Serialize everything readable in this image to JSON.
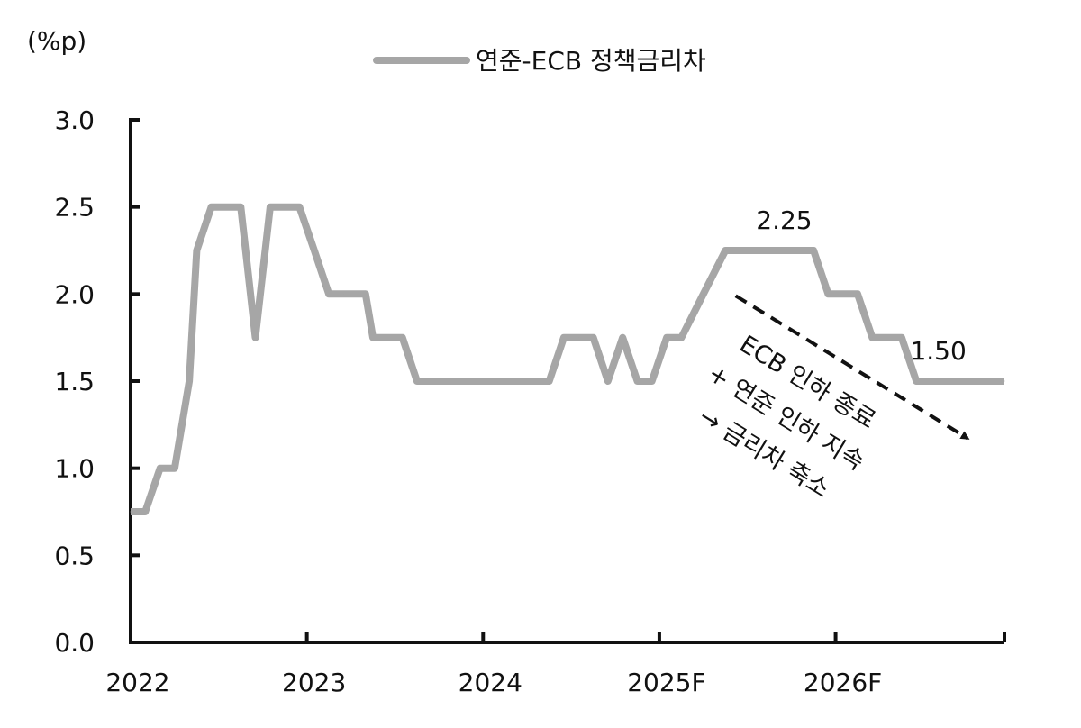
{
  "chart_data": {
    "type": "line",
    "unit_label": "(%p)",
    "legend": {
      "position": "top-center"
    },
    "series": [
      {
        "name": "연준-ECB 정책금리차",
        "color": "#a6a6a6",
        "x": [
          2022.0,
          2022.083,
          2022.167,
          2022.25,
          2022.333,
          2022.375,
          2022.458,
          2022.542,
          2022.625,
          2022.708,
          2022.792,
          2022.875,
          2022.958,
          2023.042,
          2023.125,
          2023.208,
          2023.333,
          2023.375,
          2023.458,
          2023.542,
          2023.625,
          2023.708,
          2024.0,
          2024.25,
          2024.375,
          2024.458,
          2024.542,
          2024.625,
          2024.708,
          2024.792,
          2024.875,
          2024.958,
          2025.042,
          2025.125,
          2025.25,
          2025.375,
          2025.5,
          2025.75,
          2025.875,
          2025.958,
          2026.042,
          2026.125,
          2026.208,
          2026.375,
          2026.458,
          2026.708,
          2026.958
        ],
        "y": [
          0.75,
          0.75,
          1.0,
          1.0,
          1.5,
          2.25,
          2.5,
          2.5,
          2.5,
          1.75,
          2.5,
          2.5,
          2.5,
          2.25,
          2.0,
          2.0,
          2.0,
          1.75,
          1.75,
          1.75,
          1.5,
          1.5,
          1.5,
          1.5,
          1.5,
          1.75,
          1.75,
          1.75,
          1.5,
          1.75,
          1.5,
          1.5,
          1.75,
          1.75,
          2.0,
          2.25,
          2.25,
          2.25,
          2.25,
          2.0,
          2.0,
          2.0,
          1.75,
          1.75,
          1.5,
          1.5,
          1.5
        ]
      }
    ],
    "xlim": [
      2022.0,
      2026.958
    ],
    "ylim": [
      0.0,
      3.0
    ],
    "x_ticks": [
      {
        "value": 2022,
        "label": "2022"
      },
      {
        "value": 2023,
        "label": "2023"
      },
      {
        "value": 2024,
        "label": "2024"
      },
      {
        "value": 2025,
        "label": "2025F"
      },
      {
        "value": 2026,
        "label": "2026F"
      }
    ],
    "y_ticks": [
      {
        "value": 0.0,
        "label": "0.0"
      },
      {
        "value": 0.5,
        "label": "0.5"
      },
      {
        "value": 1.0,
        "label": "1.0"
      },
      {
        "value": 1.5,
        "label": "1.5"
      },
      {
        "value": 2.0,
        "label": "2.0"
      },
      {
        "value": 2.5,
        "label": "2.5"
      },
      {
        "value": 3.0,
        "label": "3.0"
      }
    ],
    "grid": false,
    "data_labels": [
      {
        "x": 2025.708,
        "y": 2.25,
        "text": "2.25"
      },
      {
        "x": 2026.583,
        "y": 1.5,
        "text": "1.50"
      }
    ],
    "annotation": {
      "lines": [
        "ECB 인하 종료",
        "+ 연준 인하 지속",
        "→ 금리차 축소"
      ],
      "arrow_from": {
        "x": 2025.433,
        "y": 1.99
      },
      "arrow_to": {
        "x": 2026.8,
        "y": 1.14
      },
      "arrow_style": "dashed"
    }
  }
}
